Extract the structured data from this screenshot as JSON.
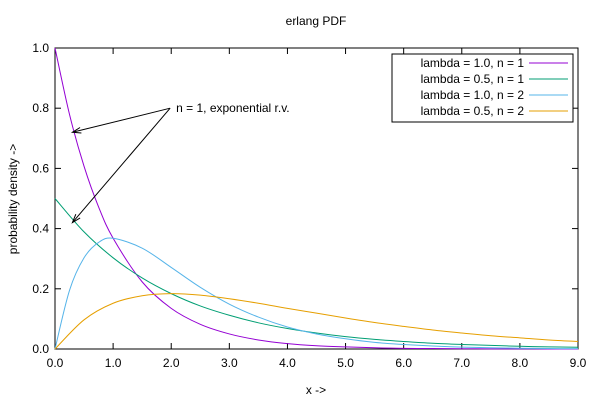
{
  "chart_data": {
    "type": "line",
    "title": "erlang PDF",
    "xlabel": "x ->",
    "ylabel": "probability density ->",
    "xlim": [
      0,
      9
    ],
    "ylim": [
      0,
      1
    ],
    "x_ticks": [
      "0.0",
      "1.0",
      "2.0",
      "3.0",
      "4.0",
      "5.0",
      "6.0",
      "7.0",
      "8.0",
      "9.0"
    ],
    "y_ticks": [
      "0.0",
      "0.2",
      "0.4",
      "0.6",
      "0.8",
      "1.0"
    ],
    "grid": false,
    "legend_position": "top-right",
    "series": [
      {
        "name": "lambda = 1.0, n = 1",
        "color": "#9400d3",
        "x": [
          0,
          0.25,
          0.5,
          0.75,
          1.0,
          1.5,
          2.0,
          2.5,
          3.0,
          3.5,
          4.0,
          4.5,
          5.0,
          5.5,
          6.0,
          6.5,
          7.0,
          7.5,
          8.0,
          8.5,
          9.0
        ],
        "values": [
          1.0,
          0.779,
          0.607,
          0.472,
          0.368,
          0.223,
          0.135,
          0.082,
          0.05,
          0.03,
          0.018,
          0.011,
          0.007,
          0.004,
          0.002,
          0.0015,
          0.0009,
          0.0006,
          0.0003,
          0.0002,
          0.0001
        ]
      },
      {
        "name": "lambda = 0.5, n = 1",
        "color": "#009e73",
        "x": [
          0,
          0.5,
          1.0,
          1.5,
          2.0,
          2.5,
          3.0,
          3.5,
          4.0,
          4.5,
          5.0,
          5.5,
          6.0,
          6.5,
          7.0,
          7.5,
          8.0,
          8.5,
          9.0
        ],
        "values": [
          0.5,
          0.389,
          0.303,
          0.236,
          0.184,
          0.143,
          0.112,
          0.087,
          0.068,
          0.053,
          0.041,
          0.032,
          0.025,
          0.019,
          0.015,
          0.012,
          0.009,
          0.007,
          0.006
        ]
      },
      {
        "name": "lambda = 1.0, n = 2",
        "color": "#56b4e9",
        "x": [
          0,
          0.25,
          0.5,
          0.75,
          1.0,
          1.5,
          2.0,
          2.5,
          3.0,
          3.5,
          4.0,
          4.5,
          5.0,
          5.5,
          6.0,
          6.5,
          7.0,
          7.5,
          8.0,
          8.5,
          9.0
        ],
        "values": [
          0.0,
          0.195,
          0.303,
          0.354,
          0.368,
          0.335,
          0.271,
          0.205,
          0.149,
          0.106,
          0.073,
          0.05,
          0.034,
          0.022,
          0.015,
          0.0098,
          0.0064,
          0.0041,
          0.0027,
          0.0017,
          0.0011
        ]
      },
      {
        "name": "lambda = 0.5, n = 2",
        "color": "#e69f00",
        "x": [
          0,
          0.5,
          1.0,
          1.5,
          2.0,
          2.5,
          3.0,
          3.5,
          4.0,
          4.5,
          5.0,
          5.5,
          6.0,
          6.5,
          7.0,
          7.5,
          8.0,
          8.5,
          9.0
        ],
        "values": [
          0.0,
          0.097,
          0.152,
          0.177,
          0.184,
          0.179,
          0.167,
          0.152,
          0.135,
          0.119,
          0.103,
          0.088,
          0.075,
          0.063,
          0.053,
          0.044,
          0.037,
          0.03,
          0.025
        ]
      }
    ],
    "annotations": [
      {
        "text": "n = 1, exponential r.v.",
        "anchor": [
          2.05,
          0.8
        ],
        "arrow_targets": [
          [
            0.3,
            0.72
          ],
          [
            0.3,
            0.42
          ]
        ]
      }
    ]
  }
}
